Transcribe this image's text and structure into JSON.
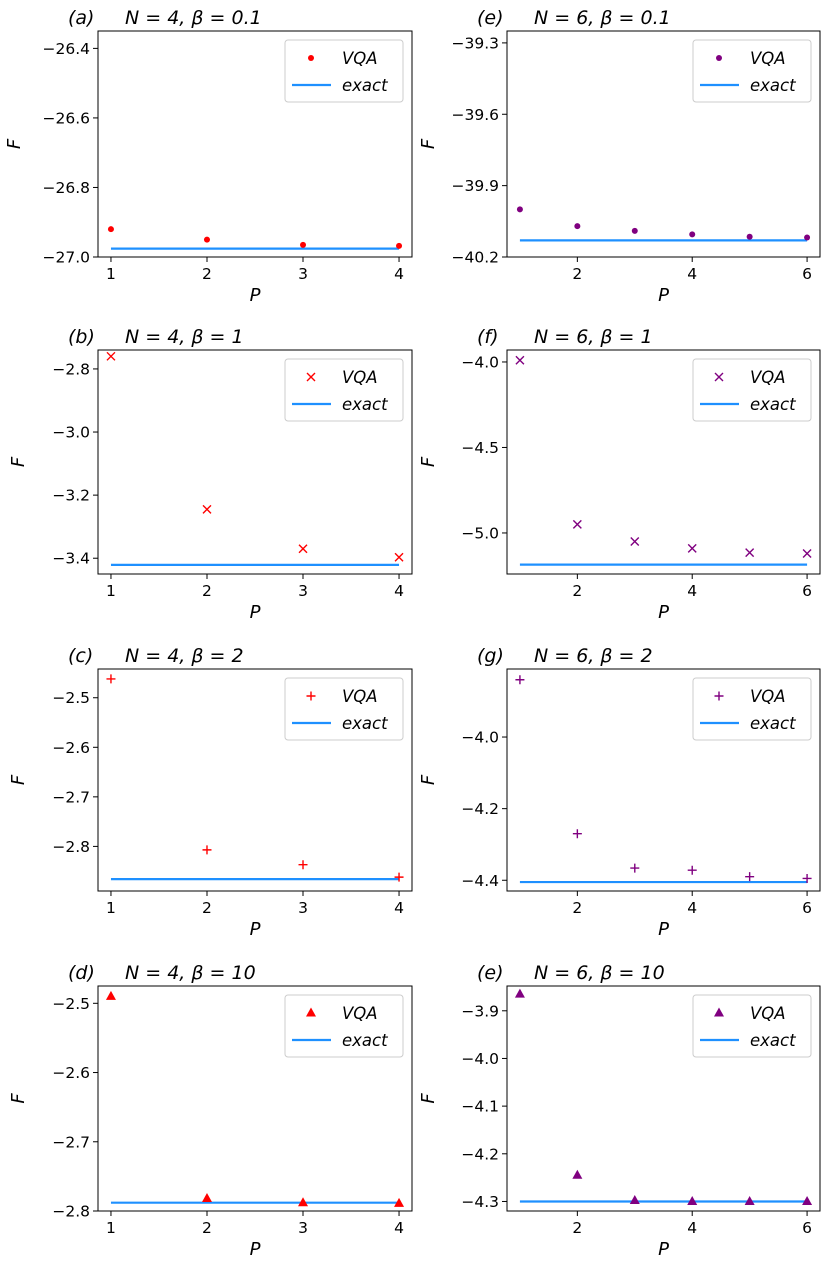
{
  "colors": {
    "n4": "#ff0000",
    "n6": "#800080",
    "exact": "#1e90ff"
  },
  "chart_data": [
    {
      "type": "scatter",
      "panel_label": "(a)",
      "title": "N = 4, β = 0.1",
      "xlabel": "P",
      "ylabel": "F",
      "x": [
        1,
        2,
        3,
        4
      ],
      "x_ticks": [
        "1",
        "2",
        "3",
        "4"
      ],
      "ylim": [
        -27.0,
        -26.35
      ],
      "y_ticks": [
        -27.0,
        -26.8,
        -26.6,
        -26.4
      ],
      "y_tick_labels": [
        "−27.0",
        "−26.8",
        "−26.6",
        "−26.4"
      ],
      "series": [
        {
          "name": "VQA",
          "marker": "dot",
          "color": "#ff0000",
          "values": [
            -26.92,
            -26.95,
            -26.965,
            -26.968
          ]
        },
        {
          "name": "exact",
          "marker": "line",
          "color": "#1e90ff",
          "values": [
            -26.976,
            -26.976,
            -26.976,
            -26.976
          ]
        }
      ],
      "legend": "top-right"
    },
    {
      "type": "scatter",
      "panel_label": "(e)",
      "title": "N = 6, β = 0.1",
      "xlabel": "P",
      "ylabel": "F",
      "x": [
        1,
        2,
        3,
        4,
        5,
        6
      ],
      "x_ticks": [
        "2",
        "4",
        "6"
      ],
      "ylim": [
        -40.2,
        -39.25
      ],
      "y_ticks": [
        -40.2,
        -39.9,
        -39.6,
        -39.3
      ],
      "y_tick_labels": [
        "−40.2",
        "−39.9",
        "−39.6",
        "−39.3"
      ],
      "series": [
        {
          "name": "VQA",
          "marker": "dot",
          "color": "#800080",
          "values": [
            -40.0,
            -40.07,
            -40.09,
            -40.105,
            -40.115,
            -40.118
          ]
        },
        {
          "name": "exact",
          "marker": "line",
          "color": "#1e90ff",
          "values": [
            -40.13,
            -40.13,
            -40.13,
            -40.13,
            -40.13,
            -40.13
          ]
        }
      ],
      "legend": "top-right"
    },
    {
      "type": "scatter",
      "panel_label": "(b)",
      "title": "N = 4, β = 1",
      "xlabel": "P",
      "ylabel": "F",
      "x": [
        1,
        2,
        3,
        4
      ],
      "x_ticks": [
        "1",
        "2",
        "3",
        "4"
      ],
      "ylim": [
        -3.45,
        -2.74
      ],
      "y_ticks": [
        -3.4,
        -3.2,
        -3.0,
        -2.8
      ],
      "y_tick_labels": [
        "−3.4",
        "−3.2",
        "−3.0",
        "−2.8"
      ],
      "series": [
        {
          "name": "VQA",
          "marker": "x",
          "color": "#ff0000",
          "values": [
            -2.76,
            -3.245,
            -3.37,
            -3.397
          ]
        },
        {
          "name": "exact",
          "marker": "line",
          "color": "#1e90ff",
          "values": [
            -3.421,
            -3.421,
            -3.421,
            -3.421
          ]
        }
      ],
      "legend": "top-right"
    },
    {
      "type": "scatter",
      "panel_label": "(f)",
      "title": "N = 6, β = 1",
      "xlabel": "P",
      "ylabel": "F",
      "x": [
        1,
        2,
        3,
        4,
        5,
        6
      ],
      "x_ticks": [
        "2",
        "4",
        "6"
      ],
      "ylim": [
        -5.24,
        -3.93
      ],
      "y_ticks": [
        -5.0,
        -4.5,
        -4.0
      ],
      "y_tick_labels": [
        "−5.0",
        "−4.5",
        "−4.0"
      ],
      "series": [
        {
          "name": "VQA",
          "marker": "x",
          "color": "#800080",
          "values": [
            -3.99,
            -4.95,
            -5.05,
            -5.09,
            -5.115,
            -5.12
          ]
        },
        {
          "name": "exact",
          "marker": "line",
          "color": "#1e90ff",
          "values": [
            -5.185,
            -5.185,
            -5.185,
            -5.185,
            -5.185,
            -5.185
          ]
        }
      ],
      "legend": "top-right"
    },
    {
      "type": "scatter",
      "panel_label": "(c)",
      "title": "N = 4, β = 2",
      "xlabel": "P",
      "ylabel": "F",
      "x": [
        1,
        2,
        3,
        4
      ],
      "x_ticks": [
        "1",
        "2",
        "3",
        "4"
      ],
      "ylim": [
        -2.89,
        -2.442
      ],
      "y_ticks": [
        -2.8,
        -2.7,
        -2.6,
        -2.5
      ],
      "y_tick_labels": [
        "−2.8",
        "−2.7",
        "−2.6",
        "−2.5"
      ],
      "series": [
        {
          "name": "VQA",
          "marker": "plus",
          "color": "#ff0000",
          "values": [
            -2.462,
            -2.807,
            -2.837,
            -2.862
          ]
        },
        {
          "name": "exact",
          "marker": "line",
          "color": "#1e90ff",
          "values": [
            -2.866,
            -2.866,
            -2.866,
            -2.866
          ]
        }
      ],
      "legend": "top-right"
    },
    {
      "type": "scatter",
      "panel_label": "(g)",
      "title": "N = 6, β = 2",
      "xlabel": "P",
      "ylabel": "F",
      "x": [
        1,
        2,
        3,
        4,
        5,
        6
      ],
      "x_ticks": [
        "2",
        "4",
        "6"
      ],
      "ylim": [
        -4.43,
        -3.81
      ],
      "y_ticks": [
        -4.4,
        -4.2,
        -4.0
      ],
      "y_tick_labels": [
        "−4.4",
        "−4.2",
        "−4.0"
      ],
      "series": [
        {
          "name": "VQA",
          "marker": "plus",
          "color": "#800080",
          "values": [
            -3.84,
            -4.27,
            -4.366,
            -4.372,
            -4.39,
            -4.395
          ]
        },
        {
          "name": "exact",
          "marker": "line",
          "color": "#1e90ff",
          "values": [
            -4.405,
            -4.405,
            -4.405,
            -4.405,
            -4.405,
            -4.405
          ]
        }
      ],
      "legend": "top-right"
    },
    {
      "type": "scatter",
      "panel_label": "(d)",
      "title": "N = 4, β = 10",
      "xlabel": "P",
      "ylabel": "F",
      "x": [
        1,
        2,
        3,
        4
      ],
      "x_ticks": [
        "1",
        "2",
        "3",
        "4"
      ],
      "ylim": [
        -2.8,
        -2.475
      ],
      "y_ticks": [
        -2.8,
        -2.7,
        -2.6,
        -2.5
      ],
      "y_tick_labels": [
        "−2.8",
        "−2.7",
        "−2.6",
        "−2.5"
      ],
      "series": [
        {
          "name": "VQA",
          "marker": "triangle",
          "color": "#ff0000",
          "values": [
            -2.49,
            -2.782,
            -2.788,
            -2.789
          ]
        },
        {
          "name": "exact",
          "marker": "line",
          "color": "#1e90ff",
          "values": [
            -2.788,
            -2.788,
            -2.788,
            -2.788
          ]
        }
      ],
      "legend": "top-right"
    },
    {
      "type": "scatter",
      "panel_label": "(e)",
      "title": "N = 6, β = 10",
      "xlabel": "P",
      "ylabel": "F",
      "x": [
        1,
        2,
        3,
        4,
        5,
        6
      ],
      "x_ticks": [
        "2",
        "4",
        "6"
      ],
      "ylim": [
        -4.32,
        -3.848
      ],
      "y_ticks": [
        -4.3,
        -4.2,
        -4.1,
        -4.0,
        -3.9
      ],
      "y_tick_labels": [
        "−4.3",
        "−4.2",
        "−4.1",
        "−4.0",
        "−3.9"
      ],
      "series": [
        {
          "name": "VQA",
          "marker": "triangle",
          "color": "#800080",
          "values": [
            -3.865,
            -4.245,
            -4.298,
            -4.3,
            -4.3,
            -4.3
          ]
        },
        {
          "name": "exact",
          "marker": "line",
          "color": "#1e90ff",
          "values": [
            -4.3,
            -4.3,
            -4.3,
            -4.3,
            -4.3,
            -4.3
          ]
        }
      ],
      "legend": "top-right"
    }
  ]
}
